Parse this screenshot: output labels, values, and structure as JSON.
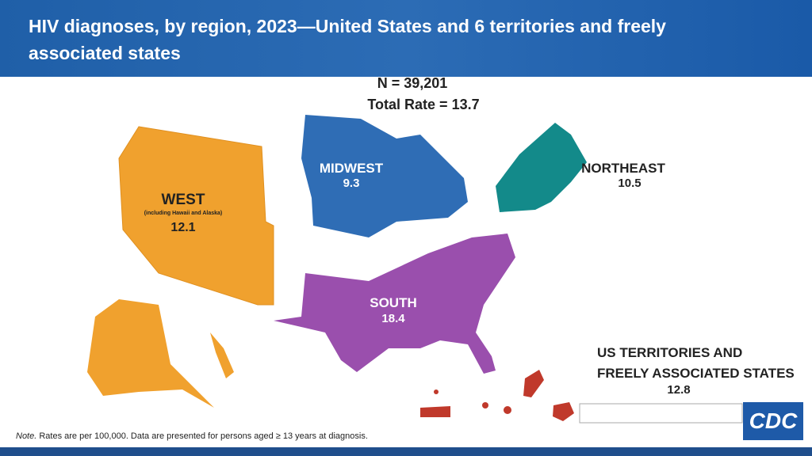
{
  "header": {
    "title": "HIV diagnoses, by region, 2023—United States and 6 territories and freely associated states"
  },
  "summary": {
    "n": "N = 39,201",
    "total_rate": "Total Rate = 13.7"
  },
  "regions": [
    {
      "name": "WEST",
      "sublabel": "(including Hawaii and Alaska)",
      "rate": 12.1
    },
    {
      "name": "MIDWEST",
      "rate": 9.3
    },
    {
      "name": "NORTHEAST",
      "rate": 10.5
    },
    {
      "name": "SOUTH",
      "rate": 18.4
    },
    {
      "name_lines": [
        "US TERRITORIES AND",
        "FREELY ASSOCIATED STATES"
      ],
      "rate": 12.8
    }
  ],
  "note": {
    "label": "Note.",
    "text": "Rates are per 100,000. Data are presented for persons aged ≥ 13 years at diagnosis."
  },
  "logo": "CDC"
}
